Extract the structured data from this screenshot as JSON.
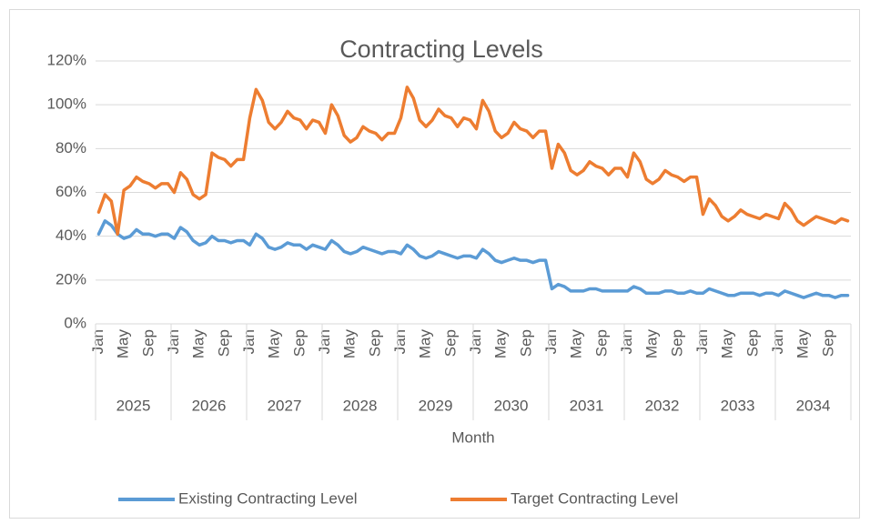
{
  "chart_data": {
    "type": "line",
    "title": "Contracting Levels",
    "x_label": "Month",
    "categories": [
      "Jan",
      null,
      null,
      null,
      "May",
      null,
      null,
      null,
      "Sep",
      null,
      null,
      null,
      "Jan",
      null,
      null,
      null,
      "May",
      null,
      null,
      null,
      "Sep",
      null,
      null,
      null,
      "Jan",
      null,
      null,
      null,
      "May",
      null,
      null,
      null,
      "Sep",
      null,
      null,
      null,
      "Jan",
      null,
      null,
      null,
      "May",
      null,
      null,
      null,
      "Sep",
      null,
      null,
      null,
      "Jan",
      null,
      null,
      null,
      "May",
      null,
      null,
      null,
      "Sep",
      null,
      null,
      null,
      "Jan",
      null,
      null,
      null,
      "May",
      null,
      null,
      null,
      "Sep",
      null,
      null,
      null,
      "Jan",
      null,
      null,
      null,
      "May",
      null,
      null,
      null,
      "Sep",
      null,
      null,
      null,
      "Jan",
      null,
      null,
      null,
      "May",
      null,
      null,
      null,
      "Sep",
      null,
      null,
      null,
      "Jan",
      null,
      null,
      null,
      "May",
      null,
      null,
      null,
      "Sep",
      null,
      null,
      null,
      "Jan",
      null,
      null,
      null,
      "May",
      null,
      null,
      null,
      "Sep",
      null,
      null,
      null
    ],
    "year_groups": [
      "2025",
      "2026",
      "2027",
      "2028",
      "2029",
      "2030",
      "2031",
      "2032",
      "2033",
      "2034"
    ],
    "series": [
      {
        "name": "Existing Contracting Level",
        "color": "#5b9bd5",
        "values": [
          41,
          47,
          45,
          41,
          39,
          40,
          43,
          41,
          41,
          40,
          41,
          41,
          39,
          44,
          42,
          38,
          36,
          37,
          40,
          38,
          38,
          37,
          38,
          38,
          36,
          41,
          39,
          35,
          34,
          35,
          37,
          36,
          36,
          34,
          36,
          35,
          34,
          38,
          36,
          33,
          32,
          33,
          35,
          34,
          33,
          32,
          33,
          33,
          32,
          36,
          34,
          31,
          30,
          31,
          33,
          32,
          31,
          30,
          31,
          31,
          30,
          34,
          32,
          29,
          28,
          29,
          30,
          29,
          29,
          28,
          29,
          29,
          16,
          18,
          17,
          15,
          15,
          15,
          16,
          16,
          15,
          15,
          15,
          15,
          15,
          17,
          16,
          14,
          14,
          14,
          15,
          15,
          14,
          14,
          15,
          14,
          14,
          16,
          15,
          14,
          13,
          13,
          14,
          14,
          14,
          13,
          14,
          14,
          13,
          15,
          14,
          13,
          12,
          13,
          14,
          13,
          13,
          12,
          13,
          13
        ]
      },
      {
        "name": "Target Contracting Level",
        "color": "#ed7d31",
        "values": [
          51,
          59,
          56,
          41,
          61,
          63,
          67,
          65,
          64,
          62,
          64,
          64,
          60,
          69,
          66,
          59,
          57,
          59,
          78,
          76,
          75,
          72,
          75,
          75,
          94,
          107,
          102,
          92,
          89,
          92,
          97,
          94,
          93,
          89,
          93,
          92,
          87,
          100,
          95,
          86,
          83,
          85,
          90,
          88,
          87,
          84,
          87,
          87,
          94,
          108,
          103,
          93,
          90,
          93,
          98,
          95,
          94,
          90,
          94,
          93,
          89,
          102,
          97,
          88,
          85,
          87,
          92,
          89,
          88,
          85,
          88,
          88,
          71,
          82,
          78,
          70,
          68,
          70,
          74,
          72,
          71,
          68,
          71,
          71,
          67,
          78,
          74,
          66,
          64,
          66,
          70,
          68,
          67,
          65,
          67,
          67,
          50,
          57,
          54,
          49,
          47,
          49,
          52,
          50,
          49,
          48,
          50,
          49,
          48,
          55,
          52,
          47,
          45,
          47,
          49,
          48,
          47,
          46,
          48,
          47
        ]
      }
    ],
    "ylim": [
      0,
      120
    ],
    "yticks": [
      {
        "value": 0,
        "label": "0%"
      },
      {
        "value": 20,
        "label": "20%"
      },
      {
        "value": 40,
        "label": "40%"
      },
      {
        "value": 60,
        "label": "60%"
      },
      {
        "value": 80,
        "label": "80%"
      },
      {
        "value": 100,
        "label": "100%"
      },
      {
        "value": 120,
        "label": "120%"
      }
    ],
    "grid": true,
    "legend": "bottom"
  }
}
